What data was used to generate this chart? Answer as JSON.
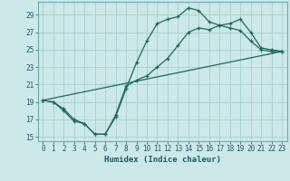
{
  "title": "",
  "xlabel": "Humidex (Indice chaleur)",
  "xlim": [
    -0.5,
    23.5
  ],
  "ylim": [
    14.5,
    30.5
  ],
  "xticks": [
    0,
    1,
    2,
    3,
    4,
    5,
    6,
    7,
    8,
    9,
    10,
    11,
    12,
    13,
    14,
    15,
    16,
    17,
    18,
    19,
    20,
    21,
    22,
    23
  ],
  "yticks": [
    15,
    17,
    19,
    21,
    23,
    25,
    27,
    29
  ],
  "bg_color": "#cce8e8",
  "grid_color": "#aacece",
  "line_color": "#1a6b5a",
  "line1_x": [
    0,
    1,
    2,
    3,
    4,
    5,
    6,
    7,
    8,
    9,
    10,
    11,
    12,
    13,
    14,
    15,
    16,
    17,
    18,
    19,
    20,
    21,
    22,
    23
  ],
  "line1_y": [
    19.2,
    19.0,
    18.0,
    16.8,
    16.5,
    15.3,
    15.3,
    17.3,
    20.5,
    23.5,
    26.0,
    28.0,
    28.5,
    28.8,
    29.8,
    29.5,
    28.2,
    27.8,
    28.0,
    28.5,
    27.0,
    25.2,
    25.0,
    24.8
  ],
  "line2_x": [
    0,
    1,
    2,
    3,
    4,
    5,
    6,
    7,
    8,
    9,
    10,
    11,
    12,
    13,
    14,
    15,
    16,
    17,
    18,
    19,
    20,
    21,
    22,
    23
  ],
  "line2_y": [
    19.2,
    19.0,
    18.2,
    17.0,
    16.5,
    15.3,
    15.3,
    17.5,
    20.8,
    21.5,
    22.0,
    23.0,
    24.0,
    25.5,
    27.0,
    27.5,
    27.3,
    27.8,
    27.5,
    27.2,
    26.0,
    25.0,
    24.8,
    24.8
  ],
  "line3_x": [
    0,
    23
  ],
  "line3_y": [
    19.2,
    24.8
  ]
}
